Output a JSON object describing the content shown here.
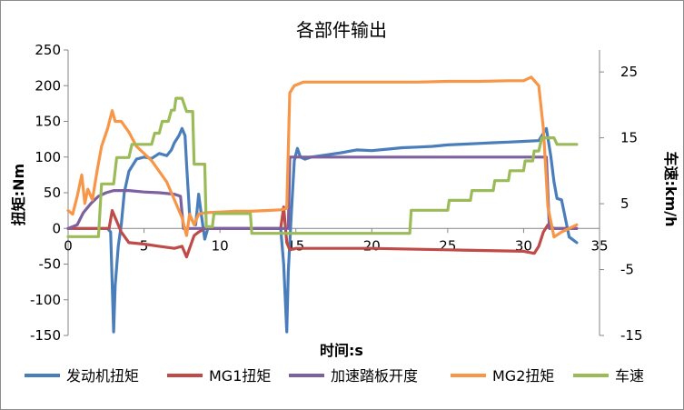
{
  "chart_data": {
    "type": "line",
    "title": "各部件输出",
    "xlabel": "时间:s",
    "ylabel_left": "扭矩:Nm",
    "ylabel_right": "车速:km/h",
    "xlim": [
      0,
      35
    ],
    "ylim_left": [
      -150,
      250
    ],
    "ylim_right": [
      -15,
      28.33
    ],
    "x_ticks": [
      "0",
      "5",
      "10",
      "15",
      "20",
      "25",
      "30",
      "35"
    ],
    "y_left_ticks": [
      "250",
      "200",
      "150",
      "100",
      "50",
      "0",
      "-50",
      "-100",
      "-150"
    ],
    "y_right_ticks": [
      "25",
      "15",
      "5",
      "-5",
      "-15"
    ],
    "y_right_tick_values": [
      25,
      15,
      5,
      -5,
      -15
    ],
    "legend_position": "bottom",
    "grid": false,
    "series": [
      {
        "name": "发动机扭矩",
        "axis": "left",
        "color": "#4a7ebb",
        "points": [
          [
            0,
            0
          ],
          [
            2.6,
            0
          ],
          [
            2.8,
            -5
          ],
          [
            3.0,
            -145
          ],
          [
            3.1,
            -80
          ],
          [
            3.3,
            -25
          ],
          [
            3.5,
            5
          ],
          [
            3.7,
            50
          ],
          [
            4.0,
            80
          ],
          [
            4.5,
            97
          ],
          [
            5.0,
            100
          ],
          [
            5.5,
            98
          ],
          [
            6.0,
            105
          ],
          [
            6.5,
            102
          ],
          [
            6.8,
            110
          ],
          [
            7.0,
            120
          ],
          [
            7.3,
            130
          ],
          [
            7.5,
            140
          ],
          [
            7.7,
            130
          ],
          [
            7.8,
            90
          ],
          [
            8.0,
            20
          ],
          [
            8.2,
            10
          ],
          [
            8.4,
            5
          ],
          [
            8.6,
            48
          ],
          [
            8.8,
            15
          ],
          [
            9.0,
            -15
          ],
          [
            9.2,
            0
          ],
          [
            9.4,
            0
          ],
          [
            14.0,
            0
          ],
          [
            14.2,
            -50
          ],
          [
            14.4,
            -145
          ],
          [
            14.5,
            -60
          ],
          [
            14.7,
            20
          ],
          [
            14.9,
            95
          ],
          [
            15.1,
            112
          ],
          [
            15.3,
            100
          ],
          [
            15.6,
            97
          ],
          [
            16,
            100
          ],
          [
            17,
            103
          ],
          [
            18,
            106
          ],
          [
            19,
            110
          ],
          [
            20,
            109
          ],
          [
            21,
            111
          ],
          [
            22,
            113
          ],
          [
            23,
            114
          ],
          [
            24,
            115
          ],
          [
            25,
            117
          ],
          [
            26,
            118
          ],
          [
            27,
            119
          ],
          [
            28,
            120
          ],
          [
            29,
            121
          ],
          [
            30,
            122
          ],
          [
            31,
            123
          ],
          [
            31.5,
            140
          ],
          [
            31.8,
            100
          ],
          [
            32.0,
            65
          ],
          [
            32.2,
            42
          ],
          [
            32.5,
            40
          ],
          [
            33.0,
            -12
          ],
          [
            33.5,
            -20
          ]
        ]
      },
      {
        "name": "MG1扭矩",
        "axis": "left",
        "color": "#be4b48",
        "points": [
          [
            0,
            0
          ],
          [
            2.7,
            0
          ],
          [
            2.9,
            25
          ],
          [
            3.2,
            10
          ],
          [
            3.5,
            -5
          ],
          [
            4.0,
            -20
          ],
          [
            5.0,
            -22
          ],
          [
            6.0,
            -25
          ],
          [
            7.0,
            -28
          ],
          [
            7.5,
            -25
          ],
          [
            7.8,
            -40
          ],
          [
            8.0,
            -28
          ],
          [
            8.3,
            -10
          ],
          [
            8.6,
            -5
          ],
          [
            9.0,
            0
          ],
          [
            14.0,
            0
          ],
          [
            14.2,
            30
          ],
          [
            14.4,
            -20
          ],
          [
            14.6,
            -30
          ],
          [
            15,
            -28
          ],
          [
            20,
            -28
          ],
          [
            25,
            -30
          ],
          [
            30,
            -32
          ],
          [
            30.7,
            -35
          ],
          [
            31.0,
            -25
          ],
          [
            31.3,
            -5
          ],
          [
            31.6,
            5
          ],
          [
            32,
            0
          ],
          [
            33.5,
            0
          ]
        ]
      },
      {
        "name": "加速踏板开度",
        "axis": "left",
        "color": "#7d60a0",
        "points": [
          [
            0,
            0
          ],
          [
            0.6,
            5
          ],
          [
            1.0,
            22
          ],
          [
            1.5,
            35
          ],
          [
            2.0,
            45
          ],
          [
            2.5,
            50
          ],
          [
            3.0,
            53
          ],
          [
            4.0,
            53
          ],
          [
            5.0,
            51
          ],
          [
            6.0,
            50
          ],
          [
            7.0,
            48
          ],
          [
            7.4,
            45
          ],
          [
            7.6,
            0
          ],
          [
            14.5,
            0
          ],
          [
            14.6,
            100
          ],
          [
            31.5,
            100
          ],
          [
            31.7,
            0
          ],
          [
            33.5,
            0
          ]
        ]
      },
      {
        "name": "MG2扭矩",
        "axis": "left",
        "color": "#f79646",
        "points": [
          [
            0,
            25
          ],
          [
            0.3,
            20
          ],
          [
            0.6,
            45
          ],
          [
            0.9,
            75
          ],
          [
            1.1,
            35
          ],
          [
            1.3,
            55
          ],
          [
            1.6,
            40
          ],
          [
            1.9,
            80
          ],
          [
            2.2,
            115
          ],
          [
            2.6,
            140
          ],
          [
            2.9,
            165
          ],
          [
            3.1,
            150
          ],
          [
            3.5,
            150
          ],
          [
            4.0,
            135
          ],
          [
            4.5,
            115
          ],
          [
            5.0,
            105
          ],
          [
            5.5,
            95
          ],
          [
            6.0,
            80
          ],
          [
            6.5,
            65
          ],
          [
            7.0,
            40
          ],
          [
            7.5,
            15
          ],
          [
            7.8,
            -10
          ],
          [
            8.0,
            20
          ],
          [
            8.3,
            5
          ],
          [
            8.6,
            20
          ],
          [
            9.0,
            22
          ],
          [
            10,
            23
          ],
          [
            11,
            24
          ],
          [
            12,
            24
          ],
          [
            13,
            25
          ],
          [
            14,
            26
          ],
          [
            14.4,
            28
          ],
          [
            14.6,
            190
          ],
          [
            14.9,
            200
          ],
          [
            15.5,
            205
          ],
          [
            17,
            205
          ],
          [
            19,
            205
          ],
          [
            21,
            205
          ],
          [
            23,
            205
          ],
          [
            25,
            206
          ],
          [
            27,
            206
          ],
          [
            29,
            207
          ],
          [
            30,
            207
          ],
          [
            30.5,
            212
          ],
          [
            31.0,
            200
          ],
          [
            31.3,
            140
          ],
          [
            31.6,
            30
          ],
          [
            32.0,
            -12
          ],
          [
            32.5,
            -5
          ],
          [
            33.0,
            0
          ],
          [
            33.5,
            5
          ]
        ]
      },
      {
        "name": "车速",
        "axis": "right",
        "color": "#9bbb59",
        "points": [
          [
            0,
            0
          ],
          [
            2.0,
            0
          ],
          [
            2.2,
            8
          ],
          [
            3.0,
            8
          ],
          [
            3.2,
            12
          ],
          [
            4.0,
            12
          ],
          [
            4.2,
            14
          ],
          [
            5.5,
            14
          ],
          [
            5.7,
            15.7
          ],
          [
            6.0,
            15.7
          ],
          [
            6.2,
            17.5
          ],
          [
            6.6,
            17.5
          ],
          [
            6.8,
            19.2
          ],
          [
            7.0,
            19.2
          ],
          [
            7.1,
            21
          ],
          [
            7.5,
            21
          ],
          [
            7.8,
            19
          ],
          [
            8.2,
            19
          ],
          [
            8.3,
            11
          ],
          [
            9.0,
            11
          ],
          [
            9.1,
            1.5
          ],
          [
            9.5,
            1.5
          ],
          [
            9.6,
            3.5
          ],
          [
            12.0,
            3.5
          ],
          [
            12.1,
            0.5
          ],
          [
            22.5,
            0.5
          ],
          [
            22.6,
            4
          ],
          [
            25.0,
            4
          ],
          [
            25.1,
            5.5
          ],
          [
            26.5,
            5.5
          ],
          [
            26.6,
            7
          ],
          [
            28.0,
            7
          ],
          [
            28.1,
            8.5
          ],
          [
            29.0,
            8.5
          ],
          [
            29.1,
            10
          ],
          [
            30.0,
            10
          ],
          [
            30.1,
            11.5
          ],
          [
            30.6,
            11.5
          ],
          [
            30.7,
            13
          ],
          [
            31.0,
            13
          ],
          [
            31.2,
            15
          ],
          [
            32.0,
            15
          ],
          [
            32.2,
            14
          ],
          [
            33.5,
            14
          ]
        ]
      }
    ]
  }
}
